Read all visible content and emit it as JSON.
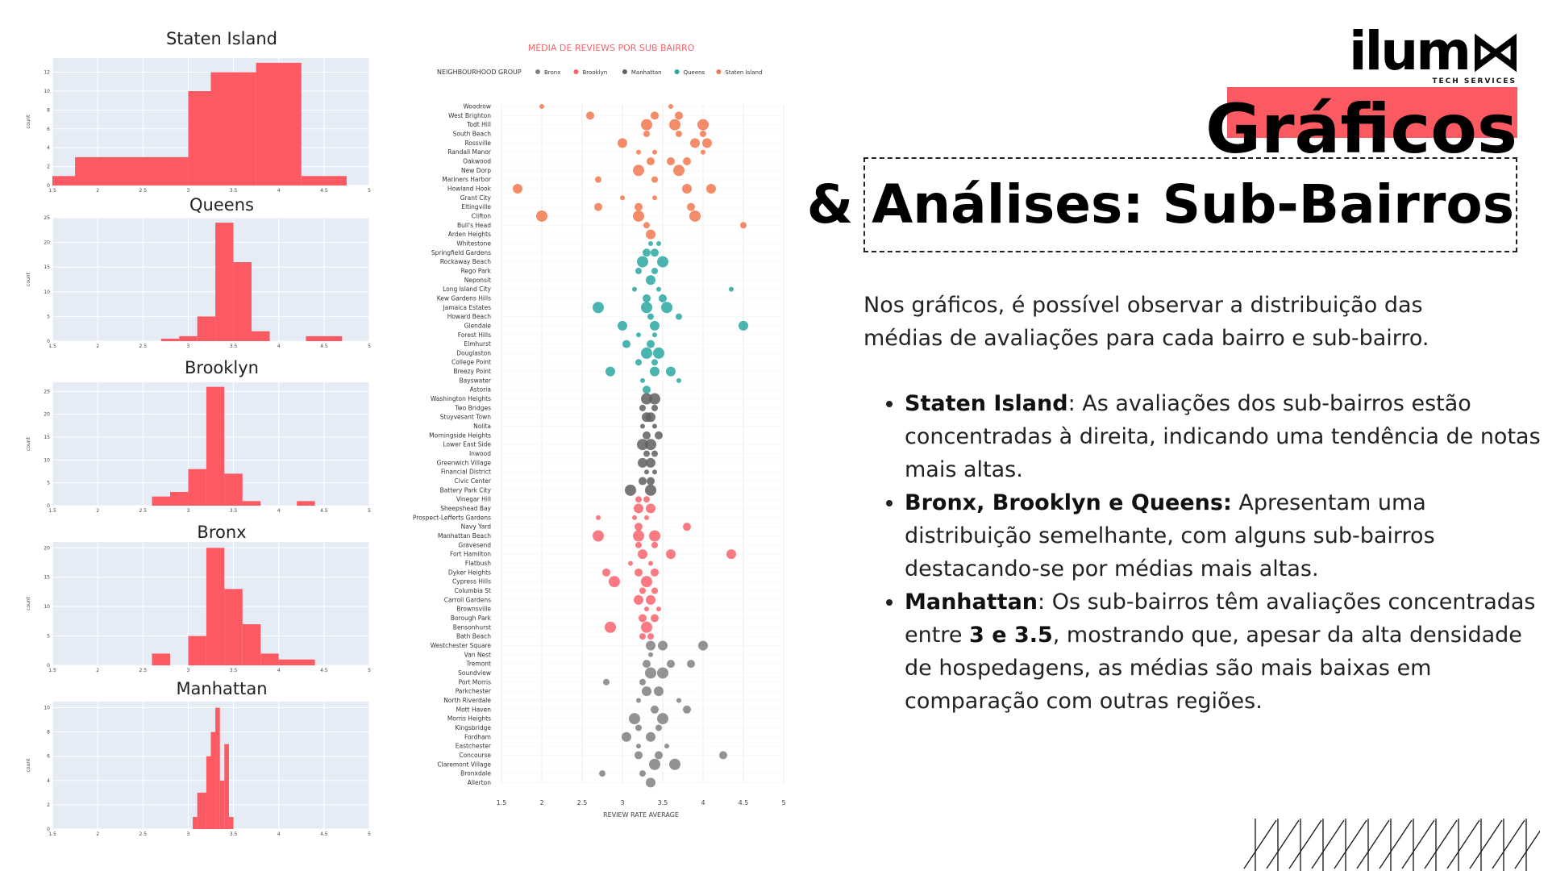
{
  "brand": {
    "logo_text": "ilum",
    "logo_subtext": "TECH SERVICES",
    "accent_color": "#fc5a62"
  },
  "heading": {
    "line1": "Gráficos",
    "line2": "& Análises: Sub-Bairros"
  },
  "intro": "Nos gráficos, é possível observar a distribuição das médias de avaliações para cada bairro e sub-bairro.",
  "bullets": [
    {
      "bold": "Staten Island",
      "text": ": As avaliações dos sub-bairros estão concentradas à direita, indicando uma tendência de notas mais altas."
    },
    {
      "bold": "Bronx, Brooklyn e Queens:",
      "text": " Apresentam uma distribuição semelhante, com alguns sub-bairros destacando-se por médias mais altas."
    },
    {
      "bold": "Manhattan",
      "text": ": Os sub-bairros têm avaliações concentradas entre ",
      "bold2": "3 e 3.5",
      "text2": ", mostrando que, apesar da alta densidade de hospedagens, as médias são mais baixas em comparação com outras regiões."
    }
  ],
  "chart_data": [
    {
      "type": "bar",
      "title": "Staten Island",
      "ylabel": "count",
      "xlim": [
        1.5,
        5
      ],
      "ylim": [
        0,
        13.5
      ],
      "xticks": [
        "1.5",
        "2",
        "2.5",
        "3",
        "3.5",
        "4",
        "4.5",
        "5"
      ],
      "yticks": [
        "0",
        "2",
        "4",
        "6",
        "8",
        "10",
        "12"
      ],
      "ytick_values": [
        0,
        2,
        4,
        6,
        8,
        10,
        12
      ],
      "bins": [
        [
          1.5,
          1.75,
          1
        ],
        [
          1.75,
          3,
          3
        ],
        [
          3,
          3.25,
          10
        ],
        [
          3.25,
          3.75,
          12
        ],
        [
          3.75,
          4.25,
          13
        ],
        [
          4.25,
          4.75,
          1
        ]
      ]
    },
    {
      "type": "bar",
      "title": "Queens",
      "ylabel": "count",
      "xlim": [
        1.5,
        5
      ],
      "ylim": [
        0,
        25
      ],
      "xticks": [
        "1.5",
        "2",
        "2.5",
        "3",
        "3.5",
        "4",
        "4.5",
        "5"
      ],
      "yticks": [
        "0",
        "5",
        "10",
        "15",
        "20",
        "25"
      ],
      "ytick_values": [
        0,
        5,
        10,
        15,
        20,
        25
      ],
      "bins": [
        [
          2.7,
          2.9,
          0.5
        ],
        [
          2.9,
          3.1,
          1
        ],
        [
          3.1,
          3.3,
          5
        ],
        [
          3.3,
          3.5,
          24
        ],
        [
          3.5,
          3.7,
          16
        ],
        [
          3.7,
          3.9,
          2
        ],
        [
          4.3,
          4.7,
          1
        ]
      ]
    },
    {
      "type": "bar",
      "title": "Brooklyn",
      "ylabel": "count",
      "xlim": [
        1.5,
        5
      ],
      "ylim": [
        0,
        27
      ],
      "xticks": [
        "1.5",
        "2",
        "2.5",
        "3",
        "3.5",
        "4",
        "4.5",
        "5"
      ],
      "yticks": [
        "0",
        "5",
        "10",
        "15",
        "20",
        "25"
      ],
      "ytick_values": [
        0,
        5,
        10,
        15,
        20,
        25
      ],
      "bins": [
        [
          2.6,
          2.8,
          2
        ],
        [
          2.8,
          3,
          3
        ],
        [
          3,
          3.2,
          8
        ],
        [
          3.2,
          3.4,
          26
        ],
        [
          3.4,
          3.6,
          7
        ],
        [
          3.6,
          3.8,
          1
        ],
        [
          4.2,
          4.4,
          1
        ]
      ]
    },
    {
      "type": "bar",
      "title": "Bronx",
      "ylabel": "count",
      "xlim": [
        1.5,
        5
      ],
      "ylim": [
        0,
        21
      ],
      "xticks": [
        "1.5",
        "2",
        "2.5",
        "3",
        "3.5",
        "4",
        "4.5",
        "5"
      ],
      "yticks": [
        "0",
        "5",
        "10",
        "15",
        "20"
      ],
      "ytick_values": [
        0,
        5,
        10,
        15,
        20
      ],
      "bins": [
        [
          2.6,
          2.8,
          2
        ],
        [
          3,
          3.2,
          5
        ],
        [
          3.2,
          3.4,
          20
        ],
        [
          3.4,
          3.6,
          13
        ],
        [
          3.6,
          3.8,
          7
        ],
        [
          3.8,
          4,
          2
        ],
        [
          4,
          4.4,
          1
        ]
      ]
    },
    {
      "type": "bar",
      "title": "Manhattan",
      "ylabel": "count",
      "xlim": [
        1.5,
        5
      ],
      "ylim": [
        0,
        10.5
      ],
      "xticks": [
        "1.5",
        "2",
        "2.5",
        "3",
        "3.5",
        "4",
        "4.5",
        "5"
      ],
      "yticks": [
        "0",
        "2",
        "4",
        "6",
        "8",
        "10"
      ],
      "ytick_values": [
        0,
        2,
        4,
        6,
        8,
        10
      ],
      "bins": [
        [
          3.05,
          3.1,
          1
        ],
        [
          3.1,
          3.2,
          3
        ],
        [
          3.2,
          3.25,
          6
        ],
        [
          3.25,
          3.3,
          8
        ],
        [
          3.3,
          3.35,
          10
        ],
        [
          3.35,
          3.4,
          4
        ],
        [
          3.4,
          3.45,
          7
        ],
        [
          3.45,
          3.5,
          1
        ]
      ]
    },
    {
      "type": "scatter",
      "title": "MÉDIA DE REVIEWS POR SUB BAIRRO",
      "xlabel": "REVIEW RATE AVERAGE",
      "legend_title": "NEIGHBOURHOOD GROUP",
      "xlim": [
        1.5,
        5
      ],
      "xticks": [
        "1.5",
        "2",
        "2.5",
        "3",
        "3.5",
        "4",
        "4.5",
        "5"
      ],
      "legend_position": "top",
      "series": [
        {
          "name": "Bronx",
          "color": "#808080"
        },
        {
          "name": "Brooklyn",
          "color": "#f8636c"
        },
        {
          "name": "Manhattan",
          "color": "#5f5f5f"
        },
        {
          "name": "Queens",
          "color": "#2aa8a2"
        },
        {
          "name": "Staten Island",
          "color": "#f3784f"
        }
      ],
      "categories": [
        [
          "Woodrow",
          "Staten Island",
          [
            2,
            3.6
          ]
        ],
        [
          "West Brighton",
          "Staten Island",
          [
            2.6,
            3.4,
            3.7
          ]
        ],
        [
          "Todt Hill",
          "Staten Island",
          [
            3.3,
            3.65,
            4
          ]
        ],
        [
          "South Beach",
          "Staten Island",
          [
            3.3,
            3.7,
            4
          ]
        ],
        [
          "Rossville",
          "Staten Island",
          [
            3,
            3.9,
            4.05
          ]
        ],
        [
          "Randall Manor",
          "Staten Island",
          [
            3.2,
            3.4,
            4
          ]
        ],
        [
          "Oakwood",
          "Staten Island",
          [
            3.35,
            3.6,
            3.8
          ]
        ],
        [
          "New Dorp",
          "Staten Island",
          [
            3.2,
            3.7
          ]
        ],
        [
          "Mariners Harbor",
          "Staten Island",
          [
            2.7,
            3.4
          ]
        ],
        [
          "Howland Hook",
          "Staten Island",
          [
            1.7,
            3.8,
            4.1
          ]
        ],
        [
          "Grant City",
          "Staten Island",
          [
            3,
            3.4
          ]
        ],
        [
          "Eltingville",
          "Staten Island",
          [
            2.7,
            3.2,
            3.85
          ]
        ],
        [
          "Clifton",
          "Staten Island",
          [
            2,
            3.2,
            3.9
          ]
        ],
        [
          "Bull's Head",
          "Staten Island",
          [
            3.3,
            4.5
          ]
        ],
        [
          "Arden Heights",
          "Staten Island",
          [
            3.35
          ]
        ],
        [
          "Whitestone",
          "Queens",
          [
            3.35,
            3.45
          ]
        ],
        [
          "Springfield Gardens",
          "Queens",
          [
            3.3,
            3.4
          ]
        ],
        [
          "Rockaway Beach",
          "Queens",
          [
            3.25,
            3.5
          ]
        ],
        [
          "Rego Park",
          "Queens",
          [
            3.2,
            3.4
          ]
        ],
        [
          "Neponsit",
          "Queens",
          [
            3.35
          ]
        ],
        [
          "Long Island City",
          "Queens",
          [
            3.15,
            3.45,
            4.35
          ]
        ],
        [
          "Kew Gardens Hills",
          "Queens",
          [
            3.3,
            3.5
          ]
        ],
        [
          "Jamaica Estates",
          "Queens",
          [
            2.7,
            3.3,
            3.55
          ]
        ],
        [
          "Howard Beach",
          "Queens",
          [
            3.35,
            3.7
          ]
        ],
        [
          "Glendale",
          "Queens",
          [
            3,
            3.4,
            4.5
          ]
        ],
        [
          "Forest Hills",
          "Queens",
          [
            3.2,
            3.4
          ]
        ],
        [
          "Elmhurst",
          "Queens",
          [
            3.05,
            3.35
          ]
        ],
        [
          "Douglaston",
          "Queens",
          [
            3.3,
            3.45
          ]
        ],
        [
          "College Point",
          "Queens",
          [
            3.2,
            3.4
          ]
        ],
        [
          "Breezy Point",
          "Queens",
          [
            2.85,
            3.4,
            3.6
          ]
        ],
        [
          "Bayswater",
          "Queens",
          [
            3.25,
            3.7
          ]
        ],
        [
          "Astoria",
          "Queens",
          [
            3.3
          ]
        ],
        [
          "Washington Heights",
          "Manhattan",
          [
            3.3,
            3.4
          ]
        ],
        [
          "Two Bridges",
          "Manhattan",
          [
            3.25,
            3.4
          ]
        ],
        [
          "Stuyvesant Town",
          "Manhattan",
          [
            3.3,
            3.35
          ]
        ],
        [
          "Nolita",
          "Manhattan",
          [
            3.25,
            3.4
          ]
        ],
        [
          "Morningside Heights",
          "Manhattan",
          [
            3.3,
            3.45
          ]
        ],
        [
          "Lower East Side",
          "Manhattan",
          [
            3.25,
            3.35
          ]
        ],
        [
          "Inwood",
          "Manhattan",
          [
            3.3,
            3.4
          ]
        ],
        [
          "Greenwich Village",
          "Manhattan",
          [
            3.25,
            3.35
          ]
        ],
        [
          "Financial District",
          "Manhattan",
          [
            3.3,
            3.4
          ]
        ],
        [
          "Civic Center",
          "Manhattan",
          [
            3.25,
            3.35
          ]
        ],
        [
          "Battery Park City",
          "Manhattan",
          [
            3.1,
            3.35
          ]
        ],
        [
          "Vinegar Hill",
          "Brooklyn",
          [
            3.2,
            3.3
          ]
        ],
        [
          "Sheepshead Bay",
          "Brooklyn",
          [
            3.2,
            3.35
          ]
        ],
        [
          "Prospect-Lefferts Gardens",
          "Brooklyn",
          [
            2.7,
            3.15,
            3.3
          ]
        ],
        [
          "Navy Yard",
          "Brooklyn",
          [
            3.2,
            3.8
          ]
        ],
        [
          "Manhattan Beach",
          "Brooklyn",
          [
            2.7,
            3.2,
            3.4
          ]
        ],
        [
          "Gravesend",
          "Brooklyn",
          [
            3.2,
            3.4
          ]
        ],
        [
          "Fort Hamilton",
          "Brooklyn",
          [
            3.25,
            3.6,
            4.35
          ]
        ],
        [
          "Flatbush",
          "Brooklyn",
          [
            3.1,
            3.35
          ]
        ],
        [
          "Dyker Heights",
          "Brooklyn",
          [
            2.8,
            3.2,
            3.4
          ]
        ],
        [
          "Cypress Hills",
          "Brooklyn",
          [
            2.9,
            3.3
          ]
        ],
        [
          "Columbia St",
          "Brooklyn",
          [
            3.25,
            3.4
          ]
        ],
        [
          "Carroll Gardens",
          "Brooklyn",
          [
            3.2,
            3.35
          ]
        ],
        [
          "Brownsville",
          "Brooklyn",
          [
            3.3,
            3.45
          ]
        ],
        [
          "Borough Park",
          "Brooklyn",
          [
            3.25,
            3.4
          ]
        ],
        [
          "Bensonhurst",
          "Brooklyn",
          [
            2.85,
            3.3
          ]
        ],
        [
          "Bath Beach",
          "Brooklyn",
          [
            3.25,
            3.35
          ]
        ],
        [
          "Westchester Square",
          "Bronx",
          [
            3.35,
            3.5,
            4
          ]
        ],
        [
          "Van Nest",
          "Bronx",
          [
            3.35
          ]
        ],
        [
          "Tremont",
          "Bronx",
          [
            3.3,
            3.6,
            3.85
          ]
        ],
        [
          "Soundview",
          "Bronx",
          [
            3.35,
            3.5
          ]
        ],
        [
          "Port Morris",
          "Bronx",
          [
            2.8,
            3.25
          ]
        ],
        [
          "Parkchester",
          "Bronx",
          [
            3.3,
            3.45
          ]
        ],
        [
          "North Riverdale",
          "Bronx",
          [
            3.2,
            3.7
          ]
        ],
        [
          "Mott Haven",
          "Bronx",
          [
            3.4,
            3.8
          ]
        ],
        [
          "Morris Heights",
          "Bronx",
          [
            3.15,
            3.5
          ]
        ],
        [
          "Kingsbridge",
          "Bronx",
          [
            3.2,
            3.45
          ]
        ],
        [
          "Fordham",
          "Bronx",
          [
            3.05,
            3.35
          ]
        ],
        [
          "Eastchester",
          "Bronx",
          [
            3.2,
            3.55
          ]
        ],
        [
          "Concourse",
          "Bronx",
          [
            3.2,
            3.45,
            4.25
          ]
        ],
        [
          "Claremont Village",
          "Bronx",
          [
            3.4,
            3.65
          ]
        ],
        [
          "Bronxdale",
          "Bronx",
          [
            2.75,
            3.25
          ]
        ],
        [
          "Allerton",
          "Bronx",
          [
            3.35
          ]
        ]
      ]
    }
  ]
}
